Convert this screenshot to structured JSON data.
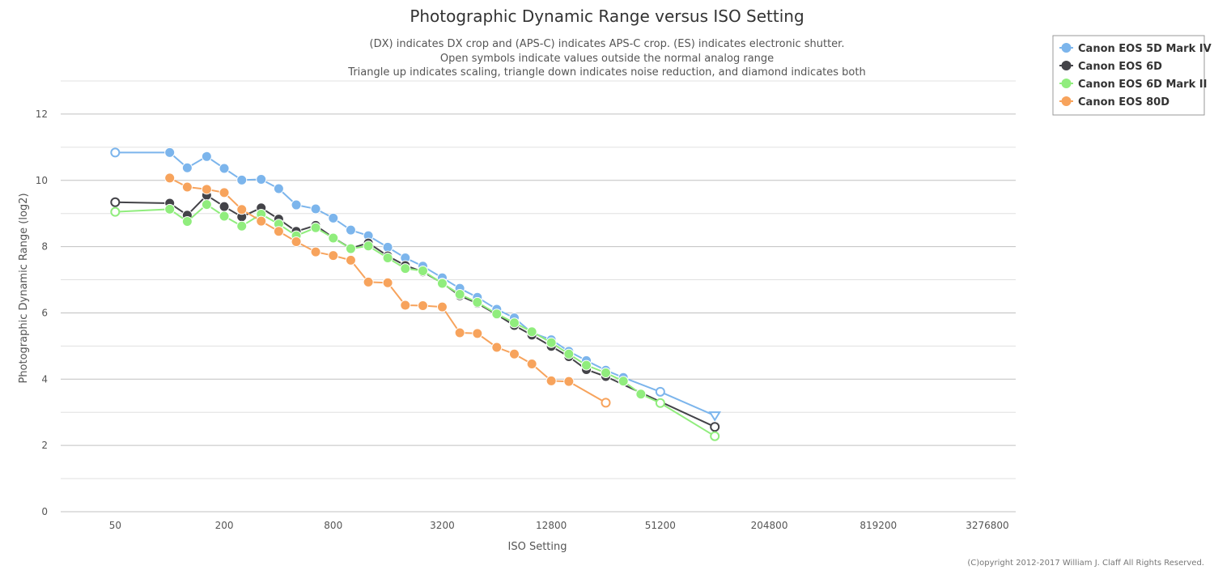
{
  "chart_data": {
    "type": "line",
    "title": "Photographic Dynamic Range versus ISO Setting",
    "subtitle_lines": [
      "(DX) indicates DX crop and (APS-C) indicates APS-C crop. (ES) indicates electronic shutter.",
      "Open symbols indicate values outside the normal analog range",
      "Triangle up indicates scaling, triangle down indicates noise reduction, and diamond indicates both"
    ],
    "xlabel": "ISO Setting",
    "ylabel": "Photographic Dynamic Range (log2)",
    "x_scale": "log2",
    "xlim": [
      25,
      4700000
    ],
    "ylim": [
      0,
      13
    ],
    "x_ticks": [
      50,
      200,
      800,
      3200,
      12800,
      51200,
      204800,
      819200,
      3276800
    ],
    "x_tick_labels": [
      "50",
      "200",
      "800",
      "3200",
      "12800",
      "51200",
      "204800",
      "819200",
      "3276800"
    ],
    "y_ticks": [
      0,
      2,
      4,
      6,
      8,
      10,
      12
    ],
    "y_tick_labels": [
      "0",
      "2",
      "4",
      "6",
      "8",
      "10",
      "12"
    ],
    "grid": true,
    "legend_position": "top-right",
    "series": [
      {
        "name": "Canon EOS 5D Mark IV",
        "color": "#7cb5ec",
        "points": [
          {
            "x": 50,
            "y": 10.84,
            "open": true
          },
          {
            "x": 100,
            "y": 10.84
          },
          {
            "x": 125,
            "y": 10.38
          },
          {
            "x": 160,
            "y": 10.72
          },
          {
            "x": 200,
            "y": 10.36
          },
          {
            "x": 250,
            "y": 10.01
          },
          {
            "x": 320,
            "y": 10.03
          },
          {
            "x": 400,
            "y": 9.75
          },
          {
            "x": 500,
            "y": 9.26
          },
          {
            "x": 640,
            "y": 9.14
          },
          {
            "x": 800,
            "y": 8.86
          },
          {
            "x": 1000,
            "y": 8.5
          },
          {
            "x": 1250,
            "y": 8.33
          },
          {
            "x": 1600,
            "y": 7.98
          },
          {
            "x": 2000,
            "y": 7.66
          },
          {
            "x": 2500,
            "y": 7.41
          },
          {
            "x": 3200,
            "y": 7.06
          },
          {
            "x": 4000,
            "y": 6.74
          },
          {
            "x": 5000,
            "y": 6.47
          },
          {
            "x": 6400,
            "y": 6.11
          },
          {
            "x": 8000,
            "y": 5.85
          },
          {
            "x": 10000,
            "y": 5.4
          },
          {
            "x": 12800,
            "y": 5.19
          },
          {
            "x": 16000,
            "y": 4.84
          },
          {
            "x": 20000,
            "y": 4.56
          },
          {
            "x": 25600,
            "y": 4.27
          },
          {
            "x": 32000,
            "y": 4.05
          },
          {
            "x": 51200,
            "y": 3.62,
            "open": true
          },
          {
            "x": 102400,
            "y": 2.9,
            "open": true,
            "marker": "triangle-down"
          }
        ]
      },
      {
        "name": "Canon EOS 6D",
        "color": "#434348",
        "points": [
          {
            "x": 50,
            "y": 9.34,
            "open": true
          },
          {
            "x": 100,
            "y": 9.31
          },
          {
            "x": 125,
            "y": 8.95
          },
          {
            "x": 160,
            "y": 9.55
          },
          {
            "x": 200,
            "y": 9.21
          },
          {
            "x": 250,
            "y": 8.9
          },
          {
            "x": 320,
            "y": 9.17
          },
          {
            "x": 400,
            "y": 8.83
          },
          {
            "x": 500,
            "y": 8.46
          },
          {
            "x": 640,
            "y": 8.64
          },
          {
            "x": 800,
            "y": 8.27
          },
          {
            "x": 1000,
            "y": 7.95
          },
          {
            "x": 1250,
            "y": 8.11
          },
          {
            "x": 1600,
            "y": 7.72
          },
          {
            "x": 2000,
            "y": 7.43
          },
          {
            "x": 2500,
            "y": 7.24
          },
          {
            "x": 3200,
            "y": 6.9
          },
          {
            "x": 4000,
            "y": 6.52
          },
          {
            "x": 5000,
            "y": 6.29
          },
          {
            "x": 6400,
            "y": 5.95
          },
          {
            "x": 8000,
            "y": 5.62
          },
          {
            "x": 10000,
            "y": 5.33
          },
          {
            "x": 12800,
            "y": 4.99
          },
          {
            "x": 16000,
            "y": 4.68
          },
          {
            "x": 20000,
            "y": 4.29
          },
          {
            "x": 25600,
            "y": 4.08
          },
          {
            "x": 102400,
            "y": 2.56,
            "open": true
          }
        ]
      },
      {
        "name": "Canon EOS 6D Mark II",
        "color": "#90ed7d",
        "points": [
          {
            "x": 50,
            "y": 9.05,
            "open": true
          },
          {
            "x": 100,
            "y": 9.13
          },
          {
            "x": 125,
            "y": 8.76
          },
          {
            "x": 160,
            "y": 9.27
          },
          {
            "x": 200,
            "y": 8.92
          },
          {
            "x": 250,
            "y": 8.62
          },
          {
            "x": 320,
            "y": 8.98
          },
          {
            "x": 400,
            "y": 8.68
          },
          {
            "x": 500,
            "y": 8.33
          },
          {
            "x": 640,
            "y": 8.57
          },
          {
            "x": 800,
            "y": 8.26
          },
          {
            "x": 1000,
            "y": 7.94
          },
          {
            "x": 1250,
            "y": 8.02
          },
          {
            "x": 1600,
            "y": 7.66
          },
          {
            "x": 2000,
            "y": 7.34
          },
          {
            "x": 2500,
            "y": 7.27
          },
          {
            "x": 3200,
            "y": 6.89
          },
          {
            "x": 4000,
            "y": 6.56
          },
          {
            "x": 5000,
            "y": 6.32
          },
          {
            "x": 6400,
            "y": 5.97
          },
          {
            "x": 8000,
            "y": 5.7
          },
          {
            "x": 10000,
            "y": 5.43
          },
          {
            "x": 12800,
            "y": 5.1
          },
          {
            "x": 16000,
            "y": 4.76
          },
          {
            "x": 20000,
            "y": 4.42
          },
          {
            "x": 25600,
            "y": 4.19
          },
          {
            "x": 32000,
            "y": 3.94
          },
          {
            "x": 40000,
            "y": 3.55
          },
          {
            "x": 51200,
            "y": 3.28,
            "open": true
          },
          {
            "x": 102400,
            "y": 2.28,
            "open": true
          }
        ]
      },
      {
        "name": "Canon EOS 80D",
        "color": "#f7a35c",
        "points": [
          {
            "x": 100,
            "y": 10.07
          },
          {
            "x": 125,
            "y": 9.8
          },
          {
            "x": 160,
            "y": 9.73
          },
          {
            "x": 200,
            "y": 9.63
          },
          {
            "x": 250,
            "y": 9.12
          },
          {
            "x": 320,
            "y": 8.77
          },
          {
            "x": 400,
            "y": 8.46
          },
          {
            "x": 500,
            "y": 8.15
          },
          {
            "x": 640,
            "y": 7.84
          },
          {
            "x": 800,
            "y": 7.73
          },
          {
            "x": 1000,
            "y": 7.59
          },
          {
            "x": 1250,
            "y": 6.93
          },
          {
            "x": 1600,
            "y": 6.91
          },
          {
            "x": 2000,
            "y": 6.23
          },
          {
            "x": 2500,
            "y": 6.22
          },
          {
            "x": 3200,
            "y": 6.18
          },
          {
            "x": 4000,
            "y": 5.4
          },
          {
            "x": 5000,
            "y": 5.38
          },
          {
            "x": 6400,
            "y": 4.96
          },
          {
            "x": 8000,
            "y": 4.76
          },
          {
            "x": 10000,
            "y": 4.46
          },
          {
            "x": 12800,
            "y": 3.95
          },
          {
            "x": 16000,
            "y": 3.93
          },
          {
            "x": 25600,
            "y": 3.29,
            "open": true
          }
        ]
      }
    ]
  },
  "copyright": "(C)opyright 2012-2017 William J. Claff All Rights Reserved."
}
